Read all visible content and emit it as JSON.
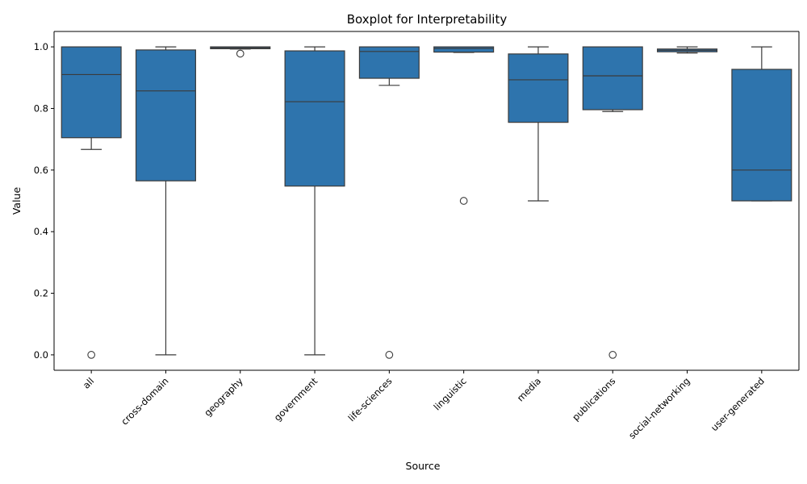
{
  "chart_data": {
    "type": "boxplot",
    "title": "Boxplot for Interpretability",
    "xlabel": "Source",
    "ylabel": "Value",
    "ylim": [
      -0.05,
      1.05
    ],
    "yticks": [
      0.0,
      0.2,
      0.4,
      0.6,
      0.8,
      1.0
    ],
    "ytick_labels": [
      "0.0",
      "0.2",
      "0.4",
      "0.6",
      "0.8",
      "1.0"
    ],
    "grid": false,
    "box_color": "#2e74ad",
    "line_color": "#3b3b3b",
    "categories": [
      "all",
      "cross-domain",
      "geography",
      "government",
      "life-sciences",
      "linguistic",
      "media",
      "publications",
      "social-networking",
      "user-generated"
    ],
    "boxes": [
      {
        "category": "all",
        "whisker_low": 0.667,
        "q1": 0.705,
        "median": 0.91,
        "q3": 1.0,
        "whisker_high": 1.0,
        "outliers": [
          0.0
        ]
      },
      {
        "category": "cross-domain",
        "whisker_low": 0.0,
        "q1": 0.565,
        "median": 0.857,
        "q3": 0.99,
        "whisker_high": 1.0,
        "outliers": []
      },
      {
        "category": "geography",
        "whisker_low": 0.993,
        "q1": 0.994,
        "median": 0.997,
        "q3": 1.0,
        "whisker_high": 1.0,
        "outliers": [
          0.978
        ]
      },
      {
        "category": "government",
        "whisker_low": 0.0,
        "q1": 0.548,
        "median": 0.822,
        "q3": 0.987,
        "whisker_high": 1.0,
        "outliers": []
      },
      {
        "category": "life-sciences",
        "whisker_low": 0.875,
        "q1": 0.898,
        "median": 0.985,
        "q3": 1.0,
        "whisker_high": 1.0,
        "outliers": [
          0.0
        ]
      },
      {
        "category": "linguistic",
        "whisker_low": 0.982,
        "q1": 0.983,
        "median": 0.995,
        "q3": 1.0,
        "whisker_high": 1.0,
        "outliers": [
          0.5
        ]
      },
      {
        "category": "media",
        "whisker_low": 0.5,
        "q1": 0.755,
        "median": 0.893,
        "q3": 0.977,
        "whisker_high": 1.0,
        "outliers": []
      },
      {
        "category": "publications",
        "whisker_low": 0.79,
        "q1": 0.796,
        "median": 0.906,
        "q3": 1.0,
        "whisker_high": 1.0,
        "outliers": [
          0.0
        ]
      },
      {
        "category": "social-networking",
        "whisker_low": 0.98,
        "q1": 0.984,
        "median": 0.989,
        "q3": 0.993,
        "whisker_high": 1.0,
        "outliers": []
      },
      {
        "category": "user-generated",
        "whisker_low": 0.5,
        "q1": 0.5,
        "median": 0.6,
        "q3": 0.927,
        "whisker_high": 1.0,
        "outliers": []
      }
    ]
  }
}
